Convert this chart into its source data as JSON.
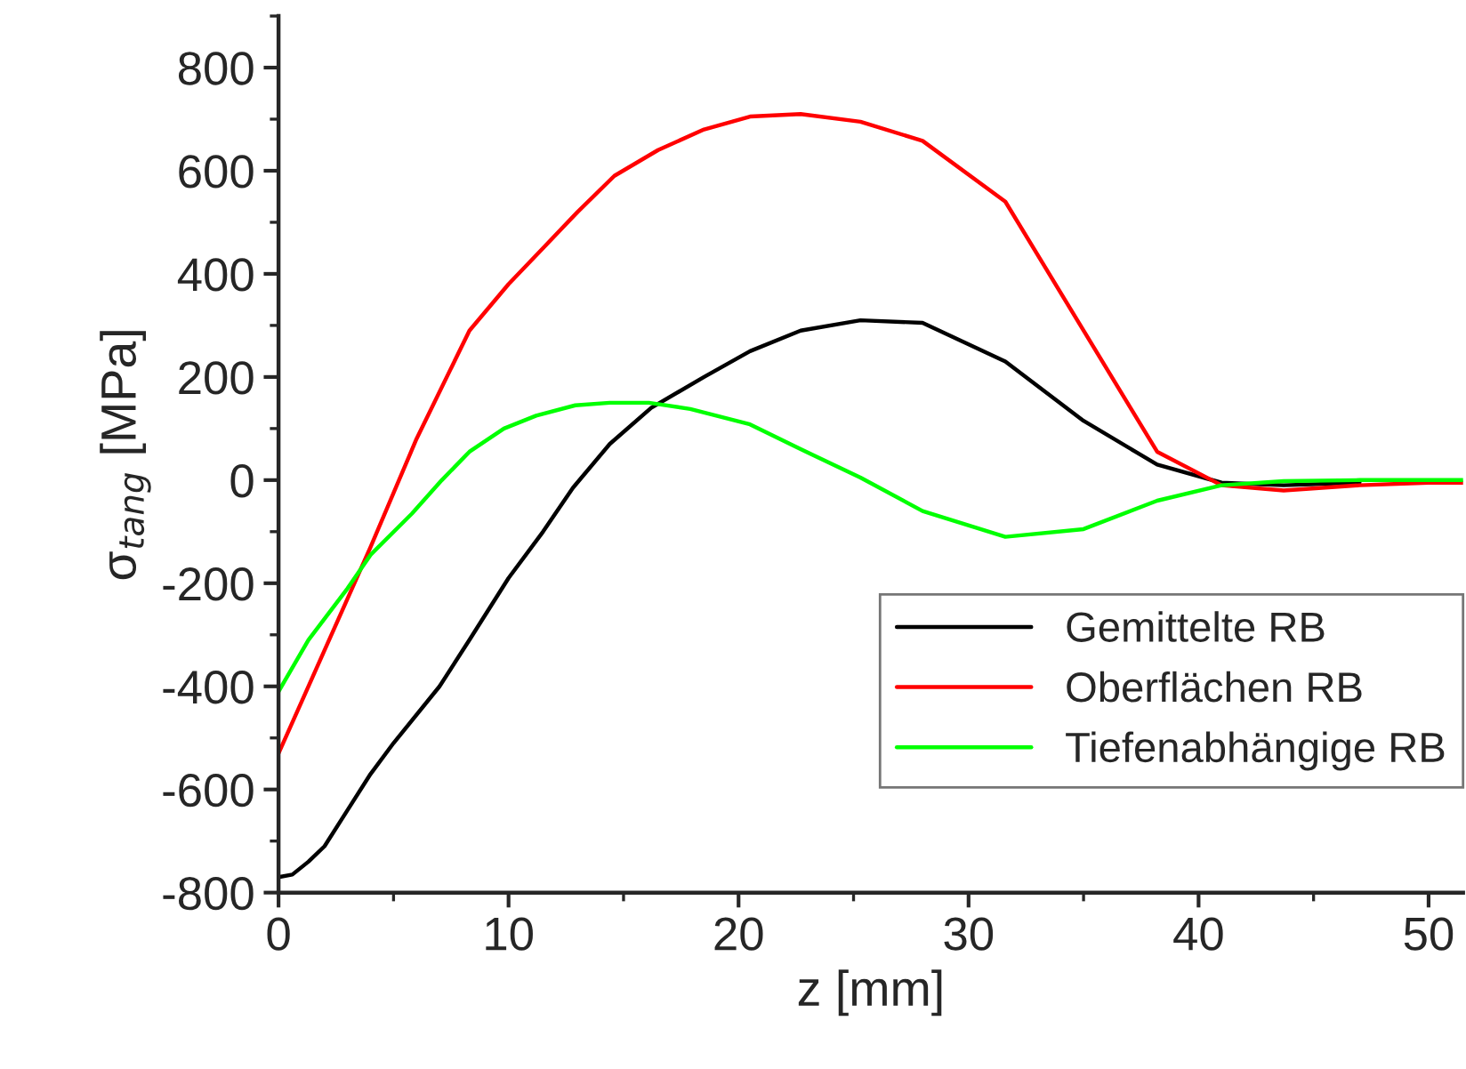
{
  "chart_data": {
    "type": "line",
    "xlabel": "z [mm]",
    "ylabel": "σ$_{tang}$ [MPa]",
    "xlim": [
      0,
      51.5
    ],
    "xticks": [
      0,
      10,
      20,
      30,
      40,
      50
    ],
    "ylim": [
      -800,
      900
    ],
    "yticks": [
      -800,
      -600,
      -400,
      -200,
      0,
      200,
      400,
      600,
      800
    ],
    "grid": false,
    "legend": "bottom right",
    "marker": "none",
    "line_style": "solid",
    "series": [
      {
        "name": "Gemittelte RB",
        "color": "#000000",
        "x": [
          0,
          0.6,
          1.3,
          2,
          3,
          4,
          5,
          7,
          8.3,
          10,
          11.5,
          12.8,
          14.4,
          16.2,
          18.5,
          20.5,
          22.7,
          25.3,
          28,
          31.6,
          35,
          38.2,
          41,
          43.7,
          47
        ],
        "values": [
          -770,
          -765,
          -740,
          -710,
          -640,
          -570,
          -510,
          -400,
          -310,
          -190,
          -100,
          -15,
          70,
          140,
          200,
          250,
          290,
          310,
          305,
          230,
          115,
          30,
          -5,
          -10,
          -5
        ]
      },
      {
        "name": "Oberflächen RB",
        "color": "#ff0000",
        "x": [
          0,
          2,
          4,
          6,
          8.3,
          10,
          11.5,
          13,
          14.6,
          16.5,
          18.5,
          20.5,
          22.7,
          25.3,
          28,
          31.6,
          35,
          38.2,
          41,
          43.7,
          47,
          50,
          51.5
        ],
        "values": [
          -530,
          -330,
          -130,
          80,
          290,
          380,
          450,
          520,
          590,
          640,
          680,
          705,
          710,
          695,
          658,
          540,
          290,
          55,
          -10,
          -20,
          -10,
          -5,
          -5
        ]
      },
      {
        "name": "Tiefenabhängige RB",
        "color": "#00ff00",
        "x": [
          0,
          1.3,
          3,
          4,
          5.8,
          7.1,
          8.3,
          9.8,
          11.2,
          12.9,
          14.4,
          16.1,
          17.9,
          20.5,
          22.7,
          25.3,
          28,
          31.6,
          35,
          38.2,
          41,
          43.7,
          47,
          51.5
        ],
        "values": [
          -410,
          -310,
          -210,
          -145,
          -65,
          0,
          55,
          100,
          125,
          145,
          150,
          150,
          138,
          108,
          60,
          5,
          -60,
          -110,
          -95,
          -40,
          -10,
          -2,
          0,
          0
        ]
      }
    ]
  }
}
